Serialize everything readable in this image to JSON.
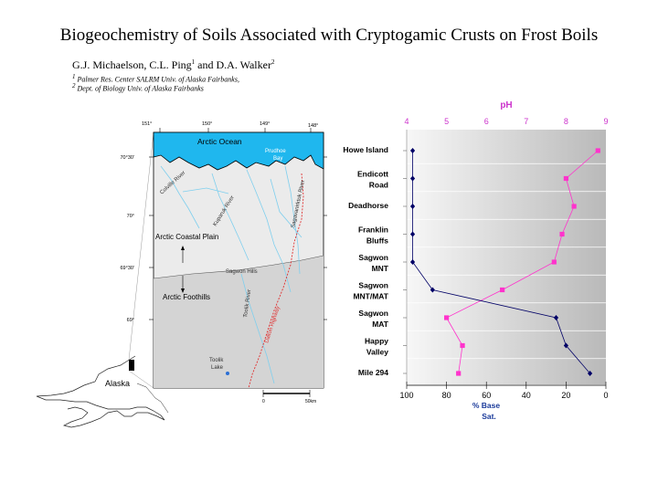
{
  "header": {
    "title": "Biogeochemistry of Soils Associated with Cryptogamic Crusts on Frost Boils",
    "authors_main": "G.J. Michaelson, C.L. Ping",
    "authors_sup1": "1",
    "authors_mid": " and D.A. Walker",
    "authors_sup2": "2",
    "affiliation_1_num": "1",
    "affiliation_1": " Palmer Res. Center SALRM Univ. of Alaska Fairbanks,",
    "affiliation_2_num": "2",
    "affiliation_2": " Dept. of Biology Univ. of Alaska Fairbanks"
  },
  "map": {
    "lon_labels": [
      "151°",
      "150°",
      "149°",
      "148°"
    ],
    "lat_labels": [
      "70°30'",
      "70°",
      "69°30'",
      "69°"
    ],
    "ocean_label": "Arctic Ocean",
    "bay_label_1": "Prudhoe",
    "bay_label_2": "Bay",
    "rivers": [
      "Colville River",
      "Kuparuk River",
      "Sagavanirktok River",
      "Toolik River"
    ],
    "road": "Dalton Highway",
    "region_1": "Arctic Coastal Plain",
    "region_2": "Arctic Foothills",
    "hills": "Sagwon Hills",
    "lake_1": "Toolik",
    "lake_2": "Lake",
    "inset_label": "Alaska",
    "scale_start": "0",
    "scale_end": "50km"
  },
  "sites": [
    [
      "Howe Island"
    ],
    [
      "Endicott",
      "Road"
    ],
    [
      "Deadhorse"
    ],
    [
      "Franklin",
      "Bluffs"
    ],
    [
      "Sagwon",
      "MNT"
    ],
    [
      "Sagwon",
      "MNT/MAT"
    ],
    [
      "Sagwon",
      "MAT"
    ],
    [
      "Happy",
      "Valley"
    ],
    [
      "Mile 294"
    ]
  ],
  "chart_data": {
    "type": "line",
    "categories": [
      "Howe Island",
      "Endicott Road",
      "Deadhorse",
      "Franklin Bluffs",
      "Sagwon MNT",
      "Sagwon MNT/MAT",
      "Sagwon MAT",
      "Happy Valley",
      "Mile 294"
    ],
    "top_axis": {
      "label": "pH",
      "range": [
        4,
        9
      ],
      "ticks": [
        "4",
        "5",
        "6",
        "7",
        "8",
        "9"
      ]
    },
    "bottom_axis": {
      "label_1": "% Base",
      "label_2": "Sat.",
      "range": [
        100,
        0
      ],
      "ticks": [
        "100",
        "80",
        "60",
        "40",
        "20",
        "0"
      ]
    },
    "series": [
      {
        "axis": "pH",
        "color": "#ff33cc",
        "values": [
          8.8,
          8.0,
          8.2,
          7.9,
          7.7,
          6.4,
          5.0,
          5.4,
          5.3
        ]
      },
      {
        "axis": "base_sat",
        "color": "#000066",
        "values": [
          97,
          97,
          97,
          97,
          97,
          87,
          25,
          20,
          8
        ]
      }
    ]
  }
}
